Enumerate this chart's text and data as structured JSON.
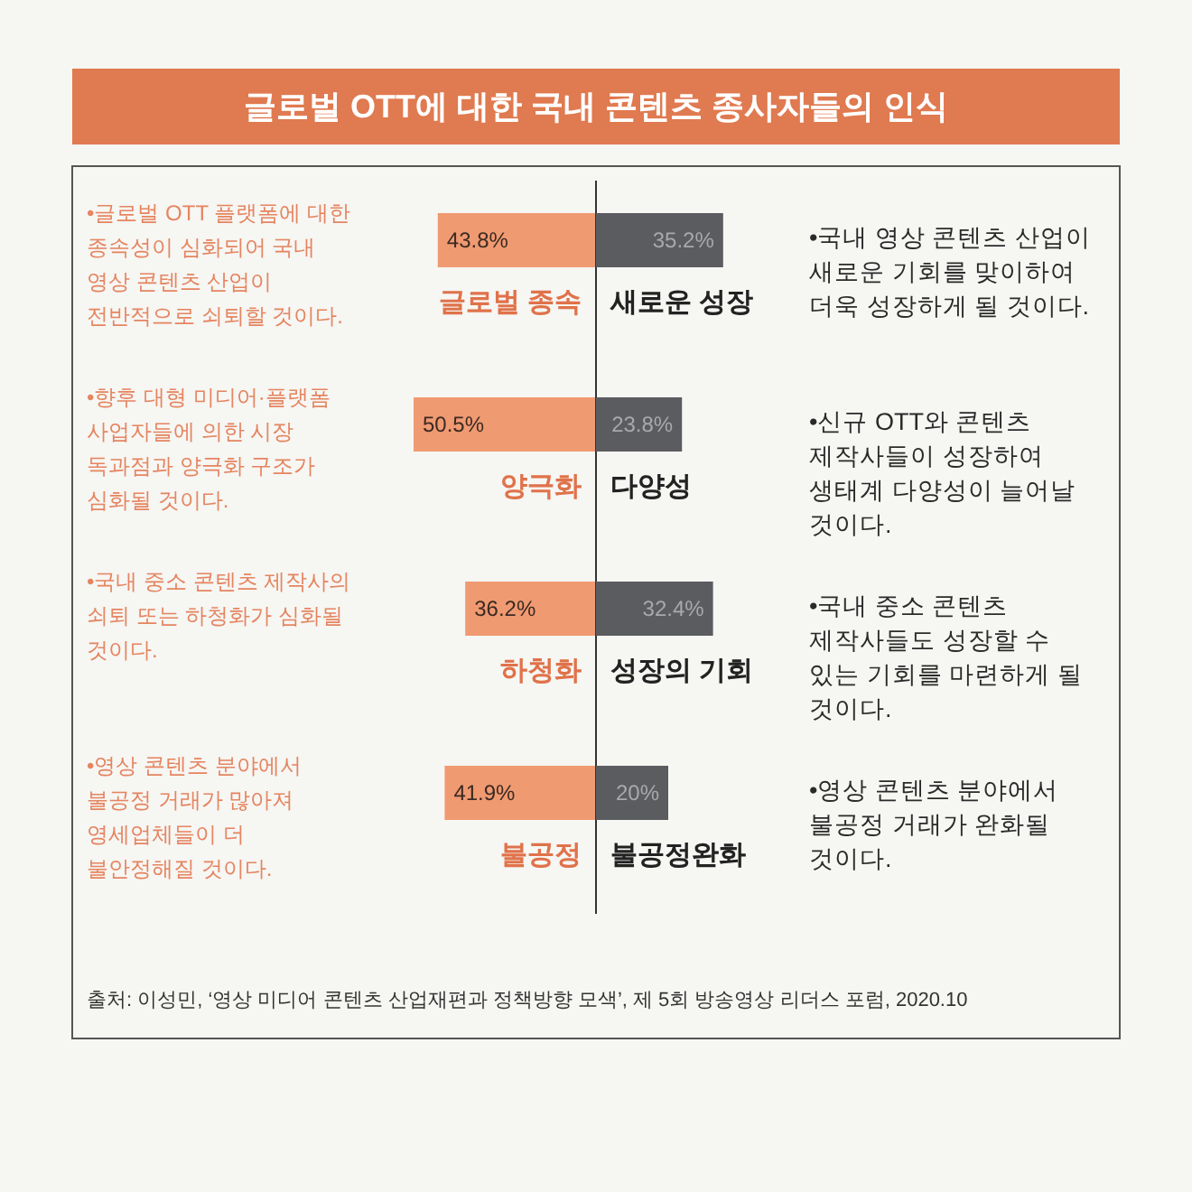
{
  "chart_data": [
    {
      "type": "bar",
      "title": "글로벌 OTT에 대한 국내 콘텐츠 종사자들의 인식",
      "orientation": "horizontal",
      "categories": [
        "글로벌 종속",
        "양극화",
        "하청화",
        "불공정"
      ],
      "series": [
        {
          "color": "#f09a72",
          "values": [
            43.8,
            50.5,
            36.2,
            41.9
          ],
          "value_labels": [
            "43.8%",
            "50.5%",
            "36.2%",
            "41.9%"
          ]
        }
      ],
      "tick_labels": "y",
      "annotations": [
        "•글로벌 OTT 플랫폼에 대한 종속성이 심화되어 국내 영상 콘텐츠 산업이 전반적으로 쇠퇴할 것이다.",
        "•향후 대형 미디어·플랫폼 사업자들에 의한 시장 독과점과 양극화 구조가 심화될 것이다.",
        "•국내 중소 콘텐츠 제작사의 쇠퇴 또는 하청화가 심화될 것이다.",
        "•영상 콘텐츠 분야에서 불공정 거래가 많아져 영세업체들이 더 불안정해질 것이다."
      ]
    },
    {
      "type": "bar",
      "orientation": "horizontal",
      "categories": [
        "새로운 성장",
        "다양성",
        "성장의 기회",
        "불공정완화"
      ],
      "series": [
        {
          "color": "#5b5c60",
          "values": [
            35.2,
            23.8,
            32.4,
            20
          ],
          "value_labels": [
            "35.2%",
            "23.8%",
            "32.4%",
            "20%"
          ]
        }
      ],
      "tick_labels": "y",
      "annotations": [
        "•국내 영상 콘텐츠 산업이 새로운 기회를 맞이하여 더욱 성장하게 될 것이다.",
        "•신규 OTT와 콘텐츠 제작사들이 성장하여 생태계 다양성이 늘어날 것이다.",
        "•국내 중소 콘텐츠 제작사들도 성장할 수 있는 기회를 마련하게 될 것이다.",
        "•영상 콘텐츠 분야에서 불공정 거래가 완화될 것이다.",
        "출처: 이성민, ‘영상 미디어 콘텐츠 산업재편과 정책방향 모색’, 제 5회 방송영상 리더스 포럼, 2020.10"
      ]
    }
  ]
}
